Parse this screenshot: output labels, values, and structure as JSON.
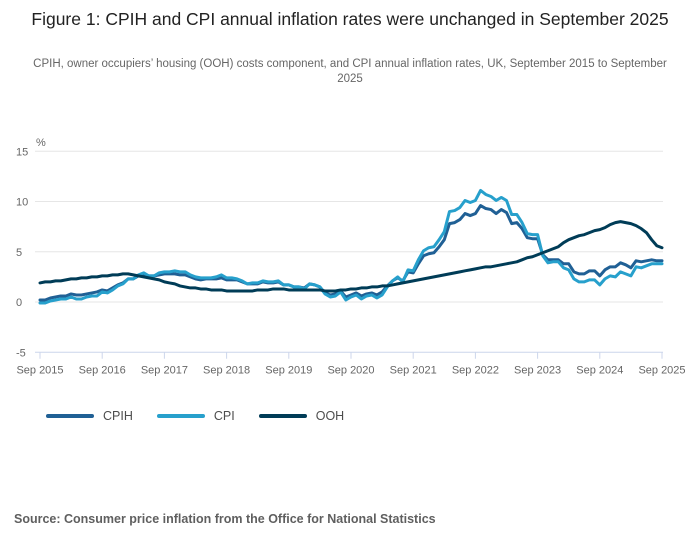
{
  "source": "Source: Consumer price inflation from the Office for National Statistics",
  "chart_data": {
    "type": "line",
    "title": "Figure 1: CPIH and CPI annual inflation rates were unchanged in September 2025",
    "subtitle": "CPIH, owner occupiers’ housing (OOH) costs component, and CPI annual inflation rates, UK, September 2015 to September 2025",
    "ylabel": "%",
    "ylim": [
      -5,
      15
    ],
    "y_ticks": [
      15,
      10,
      5,
      0,
      -5
    ],
    "x_tick_labels": [
      "Sep 2015",
      "Sep 2016",
      "Sep 2017",
      "Sep 2018",
      "Sep 2019",
      "Sep 2020",
      "Sep 2021",
      "Sep 2022",
      "Sep 2023",
      "Sep 2024",
      "Sep 2025"
    ],
    "x_frequency": "monthly",
    "x_range": [
      "Sep 2015",
      "Sep 2025"
    ],
    "grid": "horizontal",
    "legend_position": "bottom-left",
    "grid_color": "#e6e6e6",
    "axis_color": "#ccd6eb",
    "series": [
      {
        "name": "CPIH",
        "color": "#206095",
        "values": [
          0.2,
          0.2,
          0.4,
          0.5,
          0.6,
          0.6,
          0.8,
          0.7,
          0.7,
          0.8,
          0.9,
          1.0,
          1.2,
          1.1,
          1.4,
          1.7,
          1.9,
          2.3,
          2.3,
          2.6,
          2.7,
          2.6,
          2.6,
          2.7,
          2.8,
          2.8,
          2.8,
          2.7,
          2.7,
          2.5,
          2.3,
          2.2,
          2.3,
          2.3,
          2.3,
          2.4,
          2.2,
          2.2,
          2.2,
          2.0,
          1.8,
          1.8,
          1.8,
          2.0,
          1.9,
          1.9,
          2.0,
          1.7,
          1.7,
          1.5,
          1.5,
          1.4,
          1.8,
          1.7,
          1.5,
          0.9,
          0.7,
          0.8,
          1.1,
          0.5,
          0.7,
          0.9,
          0.6,
          0.8,
          0.9,
          0.7,
          1.0,
          1.6,
          2.1,
          2.4,
          2.1,
          3.0,
          2.9,
          3.8,
          4.6,
          4.8,
          4.9,
          5.5,
          6.2,
          7.8,
          7.9,
          8.2,
          8.8,
          8.6,
          8.8,
          9.6,
          9.3,
          9.2,
          8.8,
          9.2,
          8.9,
          7.8,
          7.9,
          7.3,
          6.4,
          6.3,
          6.3,
          4.7,
          4.2,
          4.2,
          4.2,
          3.8,
          3.8,
          3.0,
          2.8,
          2.8,
          3.1,
          3.1,
          2.6,
          3.2,
          3.5,
          3.5,
          3.9,
          3.7,
          3.4,
          4.1,
          4.0,
          4.1,
          4.2,
          4.1,
          4.1
        ]
      },
      {
        "name": "CPI",
        "color": "#27a0cc",
        "values": [
          -0.1,
          -0.1,
          0.1,
          0.2,
          0.3,
          0.3,
          0.5,
          0.3,
          0.3,
          0.5,
          0.6,
          0.6,
          1.0,
          0.9,
          1.2,
          1.6,
          1.8,
          2.3,
          2.3,
          2.7,
          2.9,
          2.6,
          2.6,
          2.9,
          3.0,
          3.0,
          3.1,
          3.0,
          3.0,
          2.7,
          2.5,
          2.4,
          2.4,
          2.4,
          2.5,
          2.7,
          2.4,
          2.4,
          2.3,
          2.1,
          1.8,
          1.9,
          1.9,
          2.1,
          2.0,
          2.0,
          2.1,
          1.7,
          1.7,
          1.5,
          1.5,
          1.3,
          1.8,
          1.7,
          1.5,
          0.8,
          0.5,
          0.6,
          1.0,
          0.2,
          0.5,
          0.7,
          0.3,
          0.6,
          0.7,
          0.4,
          0.7,
          1.5,
          2.1,
          2.5,
          2.0,
          3.2,
          3.1,
          4.2,
          5.1,
          5.4,
          5.5,
          6.2,
          7.0,
          9.0,
          9.1,
          9.4,
          10.1,
          9.9,
          10.1,
          11.1,
          10.7,
          10.5,
          10.1,
          10.4,
          10.1,
          8.7,
          8.7,
          7.9,
          6.8,
          6.7,
          6.7,
          4.6,
          3.9,
          4.0,
          4.0,
          3.4,
          3.2,
          2.3,
          2.0,
          2.0,
          2.2,
          2.2,
          1.7,
          2.3,
          2.6,
          2.5,
          3.0,
          2.8,
          2.6,
          3.5,
          3.4,
          3.6,
          3.8,
          3.8,
          3.8
        ]
      },
      {
        "name": "OOH",
        "color": "#003c57",
        "values": [
          1.9,
          2.0,
          2.0,
          2.1,
          2.1,
          2.2,
          2.3,
          2.3,
          2.4,
          2.4,
          2.5,
          2.5,
          2.6,
          2.6,
          2.7,
          2.7,
          2.8,
          2.8,
          2.7,
          2.6,
          2.5,
          2.4,
          2.3,
          2.2,
          2.0,
          1.9,
          1.8,
          1.6,
          1.5,
          1.4,
          1.4,
          1.3,
          1.3,
          1.2,
          1.2,
          1.2,
          1.1,
          1.1,
          1.1,
          1.1,
          1.1,
          1.1,
          1.2,
          1.2,
          1.2,
          1.3,
          1.3,
          1.3,
          1.2,
          1.2,
          1.2,
          1.2,
          1.2,
          1.2,
          1.2,
          1.1,
          1.1,
          1.1,
          1.2,
          1.2,
          1.3,
          1.3,
          1.4,
          1.4,
          1.5,
          1.5,
          1.6,
          1.6,
          1.7,
          1.8,
          1.9,
          2.0,
          2.1,
          2.2,
          2.3,
          2.4,
          2.5,
          2.6,
          2.7,
          2.8,
          2.9,
          3.0,
          3.1,
          3.2,
          3.3,
          3.4,
          3.5,
          3.5,
          3.6,
          3.7,
          3.8,
          3.9,
          4.0,
          4.2,
          4.4,
          4.5,
          4.7,
          4.9,
          5.1,
          5.3,
          5.5,
          5.9,
          6.2,
          6.4,
          6.6,
          6.7,
          6.9,
          7.1,
          7.2,
          7.4,
          7.7,
          7.9,
          8.0,
          7.9,
          7.8,
          7.6,
          7.3,
          6.9,
          6.2,
          5.6,
          5.4
        ]
      }
    ]
  }
}
